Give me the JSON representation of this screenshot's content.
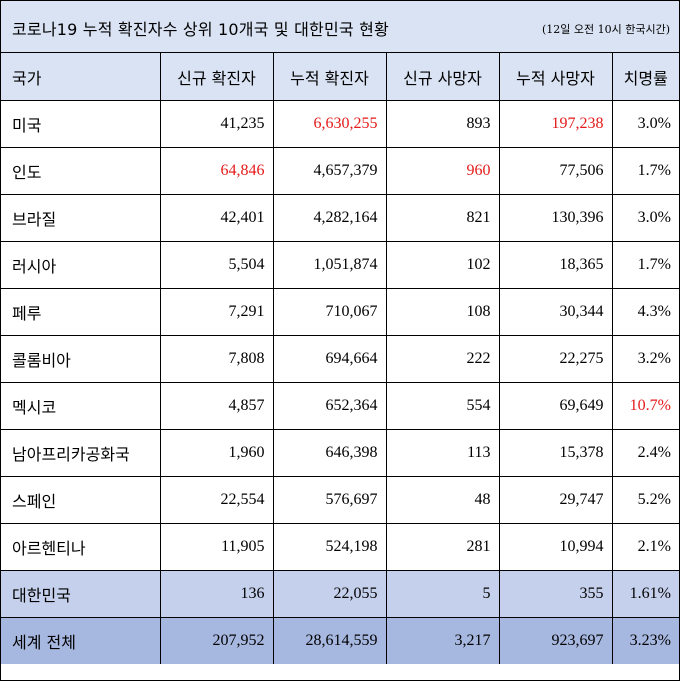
{
  "title": "코로나19 누적 확진자수 상위 10개국 및 대한민국 현황",
  "time_note": "(12일 오전 10시 한국시간)",
  "colors": {
    "header_bg": "#dae3f3",
    "korea_row_bg": "#c5d0ec",
    "world_row_bg": "#a6b7e0",
    "highlight_red": "#e41a1a"
  },
  "columns": [
    "국가",
    "신규 확진자",
    "누적 확진자",
    "신규 사망자",
    "누적 사망자",
    "치명률"
  ],
  "rows": [
    {
      "country": "미국",
      "new_cases": "41,235",
      "total_cases": "6,630,255",
      "new_deaths": "893",
      "total_deaths": "197,238",
      "fatality_rate": "3.0%"
    },
    {
      "country": "인도",
      "new_cases": "64,846",
      "total_cases": "4,657,379",
      "new_deaths": "960",
      "total_deaths": "77,506",
      "fatality_rate": "1.7%"
    },
    {
      "country": "브라질",
      "new_cases": "42,401",
      "total_cases": "4,282,164",
      "new_deaths": "821",
      "total_deaths": "130,396",
      "fatality_rate": "3.0%"
    },
    {
      "country": "러시아",
      "new_cases": "5,504",
      "total_cases": "1,051,874",
      "new_deaths": "102",
      "total_deaths": "18,365",
      "fatality_rate": "1.7%"
    },
    {
      "country": "페루",
      "new_cases": "7,291",
      "total_cases": "710,067",
      "new_deaths": "108",
      "total_deaths": "30,344",
      "fatality_rate": "4.3%"
    },
    {
      "country": "콜롬비아",
      "new_cases": "7,808",
      "total_cases": "694,664",
      "new_deaths": "222",
      "total_deaths": "22,275",
      "fatality_rate": "3.2%"
    },
    {
      "country": "멕시코",
      "new_cases": "4,857",
      "total_cases": "652,364",
      "new_deaths": "554",
      "total_deaths": "69,649",
      "fatality_rate": "10.7%"
    },
    {
      "country": "남아프리카공화국",
      "new_cases": "1,960",
      "total_cases": "646,398",
      "new_deaths": "113",
      "total_deaths": "15,378",
      "fatality_rate": "2.4%"
    },
    {
      "country": "스페인",
      "new_cases": "22,554",
      "total_cases": "576,697",
      "new_deaths": "48",
      "total_deaths": "29,747",
      "fatality_rate": "5.2%"
    },
    {
      "country": "아르헨티나",
      "new_cases": "11,905",
      "total_cases": "524,198",
      "new_deaths": "281",
      "total_deaths": "10,994",
      "fatality_rate": "2.1%"
    }
  ],
  "korea": {
    "country": "대한민국",
    "new_cases": "136",
    "total_cases": "22,055",
    "new_deaths": "5",
    "total_deaths": "355",
    "fatality_rate": "1.61%"
  },
  "world": {
    "country": "세계 전체",
    "new_cases": "207,952",
    "total_cases": "28,614,559",
    "new_deaths": "3,217",
    "total_deaths": "923,697",
    "fatality_rate": "3.23%"
  }
}
